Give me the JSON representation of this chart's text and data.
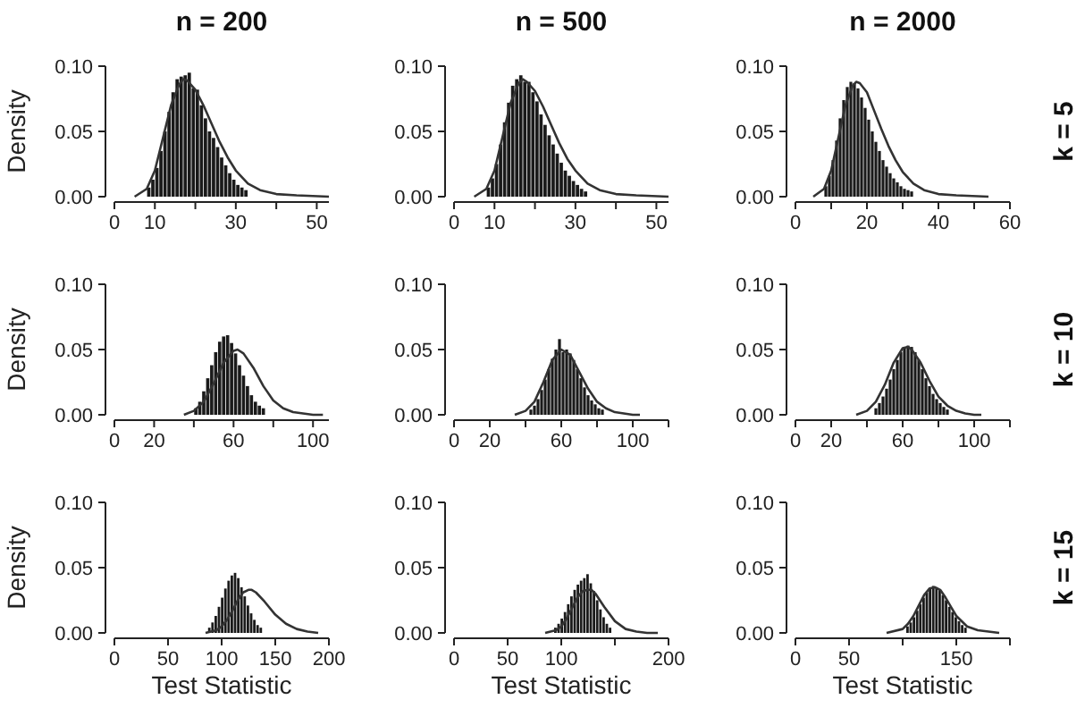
{
  "chart_data": [
    {
      "type": "histogram",
      "title": "n = 200",
      "ylabel": "Density",
      "xlim": [
        0,
        53
      ],
      "xticks": [
        0,
        10,
        {
          "value": 20,
          "label": null
        },
        30,
        {
          "value": 40,
          "label": null
        },
        50
      ],
      "ylim": [
        0,
        0.1
      ],
      "yticks": [
        {
          "value": 0,
          "label": "0.00"
        },
        {
          "value": 0.05,
          "label": "0.05"
        },
        {
          "value": 0.1,
          "label": "0.10"
        }
      ],
      "series": [
        {
          "type": "histogram",
          "color": "#1a1a1a",
          "bins": [
            8,
            9,
            10,
            11,
            12,
            13,
            14,
            15,
            16,
            17,
            18,
            19,
            20,
            21,
            22,
            23,
            24,
            25,
            26,
            27,
            28,
            29,
            30,
            31,
            32,
            33
          ],
          "values": [
            0.007,
            0.013,
            0.022,
            0.035,
            0.05,
            0.065,
            0.08,
            0.09,
            0.092,
            0.093,
            0.095,
            0.083,
            0.082,
            0.07,
            0.06,
            0.05,
            0.045,
            0.038,
            0.03,
            0.024,
            0.018,
            0.013,
            0.009,
            0.007,
            0.005
          ]
        },
        {
          "type": "line",
          "color": "#333333",
          "x": [
            5,
            8,
            10,
            12,
            14,
            16,
            17,
            18,
            20,
            22,
            24,
            26,
            28,
            30,
            33,
            36,
            40,
            45,
            53
          ],
          "values": [
            0,
            0.006,
            0.02,
            0.045,
            0.07,
            0.086,
            0.09,
            0.089,
            0.082,
            0.07,
            0.056,
            0.042,
            0.03,
            0.02,
            0.01,
            0.005,
            0.002,
            0.001,
            0
          ]
        }
      ]
    },
    {
      "type": "histogram",
      "title": "n = 500",
      "xlim": [
        0,
        53
      ],
      "xticks": [
        0,
        10,
        {
          "value": 20,
          "label": null
        },
        30,
        {
          "value": 40,
          "label": null
        },
        50
      ],
      "ylim": [
        0,
        0.1
      ],
      "yticks": [
        {
          "value": 0,
          "label": "0.00"
        },
        {
          "value": 0.05,
          "label": "0.05"
        },
        {
          "value": 0.1,
          "label": "0.10"
        }
      ],
      "series": [
        {
          "type": "histogram",
          "color": "#1a1a1a",
          "bins": [
            8,
            9,
            10,
            11,
            12,
            13,
            14,
            15,
            16,
            17,
            18,
            19,
            20,
            21,
            22,
            23,
            24,
            25,
            26,
            27,
            28,
            29,
            30,
            31,
            32,
            33
          ],
          "values": [
            0.007,
            0.014,
            0.025,
            0.04,
            0.057,
            0.072,
            0.085,
            0.09,
            0.093,
            0.088,
            0.088,
            0.08,
            0.073,
            0.063,
            0.055,
            0.047,
            0.04,
            0.033,
            0.026,
            0.02,
            0.016,
            0.012,
            0.009,
            0.006,
            0.004
          ]
        },
        {
          "type": "line",
          "color": "#333333",
          "x": [
            5,
            8,
            10,
            12,
            14,
            16,
            17,
            18,
            20,
            22,
            24,
            26,
            28,
            30,
            33,
            36,
            40,
            45,
            53
          ],
          "values": [
            0,
            0.006,
            0.02,
            0.046,
            0.072,
            0.087,
            0.09,
            0.088,
            0.081,
            0.069,
            0.055,
            0.041,
            0.029,
            0.02,
            0.01,
            0.005,
            0.002,
            0.001,
            0
          ]
        }
      ]
    },
    {
      "type": "histogram",
      "title": "n = 2000",
      "y2label": "k = 5",
      "xlim": [
        0,
        60
      ],
      "xticks": [
        0,
        {
          "value": 10,
          "label": null
        },
        20,
        {
          "value": 30,
          "label": null
        },
        40,
        {
          "value": 50,
          "label": null
        },
        60
      ],
      "ylim": [
        0,
        0.1
      ],
      "yticks": [
        {
          "value": 0,
          "label": "0.00"
        },
        {
          "value": 0.05,
          "label": "0.05"
        },
        {
          "value": 0.1,
          "label": "0.10"
        }
      ],
      "series": [
        {
          "type": "histogram",
          "color": "#1a1a1a",
          "bins": [
            8,
            9,
            10,
            11,
            12,
            13,
            14,
            15,
            16,
            17,
            18,
            19,
            20,
            21,
            22,
            23,
            24,
            25,
            26,
            27,
            28,
            29,
            30,
            31,
            32,
            33
          ],
          "values": [
            0.008,
            0.016,
            0.028,
            0.043,
            0.06,
            0.074,
            0.084,
            0.088,
            0.087,
            0.083,
            0.076,
            0.068,
            0.059,
            0.05,
            0.042,
            0.035,
            0.028,
            0.023,
            0.018,
            0.014,
            0.011,
            0.008,
            0.006,
            0.005,
            0.004
          ]
        },
        {
          "type": "line",
          "color": "#333333",
          "x": [
            5,
            8,
            10,
            12,
            14,
            16,
            17,
            18,
            20,
            22,
            24,
            26,
            28,
            30,
            33,
            36,
            40,
            45,
            54
          ],
          "values": [
            0,
            0.006,
            0.02,
            0.045,
            0.07,
            0.085,
            0.088,
            0.087,
            0.08,
            0.066,
            0.052,
            0.039,
            0.028,
            0.019,
            0.01,
            0.005,
            0.002,
            0.001,
            0
          ]
        }
      ]
    },
    {
      "type": "histogram",
      "ylabel": "Density",
      "xlim": [
        0,
        108
      ],
      "xticks": [
        0,
        20,
        {
          "value": 40,
          "label": null
        },
        60,
        {
          "value": 80,
          "label": null
        },
        100
      ],
      "ylim": [
        0,
        0.1
      ],
      "yticks": [
        {
          "value": 0,
          "label": "0.00"
        },
        {
          "value": 0.05,
          "label": "0.05"
        },
        {
          "value": 0.1,
          "label": "0.10"
        }
      ],
      "series": [
        {
          "type": "histogram",
          "color": "#1a1a1a",
          "bins": [
            40,
            42,
            44,
            46,
            48,
            50,
            52,
            54,
            56,
            58,
            60,
            62,
            64,
            66,
            68,
            70,
            72,
            74,
            76
          ],
          "values": [
            0.005,
            0.01,
            0.018,
            0.028,
            0.038,
            0.048,
            0.056,
            0.06,
            0.061,
            0.055,
            0.047,
            0.038,
            0.03,
            0.022,
            0.015,
            0.01,
            0.007,
            0.005
          ]
        },
        {
          "type": "line",
          "color": "#333333",
          "x": [
            35,
            40,
            45,
            50,
            55,
            60,
            62,
            65,
            70,
            75,
            80,
            85,
            90,
            95,
            100,
            105
          ],
          "values": [
            0,
            0.003,
            0.01,
            0.024,
            0.04,
            0.049,
            0.05,
            0.047,
            0.036,
            0.022,
            0.011,
            0.005,
            0.002,
            0.001,
            0,
            0
          ]
        }
      ]
    },
    {
      "type": "histogram",
      "xlim": [
        0,
        120
      ],
      "xticks": [
        0,
        20,
        {
          "value": 40,
          "label": null
        },
        60,
        {
          "value": 80,
          "label": null
        },
        100,
        {
          "value": 120,
          "label": null
        }
      ],
      "ylim": [
        0,
        0.1
      ],
      "yticks": [
        {
          "value": 0,
          "label": "0.00"
        },
        {
          "value": 0.05,
          "label": "0.05"
        },
        {
          "value": 0.1,
          "label": "0.10"
        }
      ],
      "series": [
        {
          "type": "histogram",
          "color": "#1a1a1a",
          "bins": [
            42,
            44,
            46,
            48,
            50,
            52,
            54,
            56,
            58,
            60,
            62,
            64,
            66,
            68,
            70,
            72,
            74,
            76,
            78,
            80,
            82,
            84
          ],
          "values": [
            0.004,
            0.007,
            0.012,
            0.019,
            0.027,
            0.035,
            0.043,
            0.05,
            0.058,
            0.048,
            0.05,
            0.047,
            0.042,
            0.035,
            0.028,
            0.021,
            0.015,
            0.011,
            0.008,
            0.005,
            0.004
          ]
        },
        {
          "type": "line",
          "color": "#333333",
          "x": [
            34,
            40,
            45,
            50,
            55,
            60,
            65,
            70,
            75,
            80,
            85,
            90,
            95,
            100,
            104
          ],
          "values": [
            0,
            0.003,
            0.01,
            0.025,
            0.042,
            0.05,
            0.046,
            0.033,
            0.02,
            0.01,
            0.005,
            0.002,
            0.001,
            0,
            0
          ]
        }
      ]
    },
    {
      "type": "histogram",
      "y2label": "k = 10",
      "xlim": [
        0,
        120
      ],
      "xticks": [
        0,
        20,
        {
          "value": 40,
          "label": null
        },
        60,
        {
          "value": 80,
          "label": null
        },
        100,
        {
          "value": 120,
          "label": null
        }
      ],
      "ylim": [
        0,
        0.1
      ],
      "yticks": [
        {
          "value": 0,
          "label": "0.00"
        },
        {
          "value": 0.05,
          "label": "0.05"
        },
        {
          "value": 0.1,
          "label": "0.10"
        }
      ],
      "series": [
        {
          "type": "histogram",
          "color": "#1a1a1a",
          "bins": [
            44,
            46,
            48,
            50,
            52,
            54,
            56,
            58,
            60,
            62,
            64,
            66,
            68,
            70,
            72,
            74,
            76,
            78,
            80,
            82,
            84,
            86
          ],
          "values": [
            0.005,
            0.009,
            0.014,
            0.02,
            0.027,
            0.035,
            0.042,
            0.048,
            0.052,
            0.053,
            0.052,
            0.048,
            0.042,
            0.035,
            0.028,
            0.022,
            0.016,
            0.012,
            0.009,
            0.006,
            0.004
          ]
        },
        {
          "type": "line",
          "color": "#333333",
          "x": [
            34,
            40,
            45,
            50,
            55,
            60,
            63,
            65,
            70,
            75,
            80,
            85,
            90,
            95,
            100,
            104
          ],
          "values": [
            0,
            0.003,
            0.01,
            0.023,
            0.04,
            0.051,
            0.052,
            0.05,
            0.04,
            0.026,
            0.014,
            0.007,
            0.003,
            0.001,
            0,
            0
          ]
        }
      ]
    },
    {
      "type": "histogram",
      "ylabel": "Density",
      "xlabel": "Test Statistic",
      "xlim": [
        0,
        200
      ],
      "xticks": [
        0,
        50,
        100,
        150,
        200
      ],
      "ylim": [
        0,
        0.1
      ],
      "yticks": [
        {
          "value": 0,
          "label": "0.00"
        },
        {
          "value": 0.05,
          "label": "0.05"
        },
        {
          "value": 0.1,
          "label": "0.10"
        }
      ],
      "series": [
        {
          "type": "histogram",
          "color": "#1a1a1a",
          "bins": [
            87,
            90,
            93,
            96,
            99,
            102,
            105,
            108,
            111,
            114,
            117,
            120,
            123,
            126,
            129,
            132,
            135,
            138
          ],
          "values": [
            0.004,
            0.008,
            0.013,
            0.02,
            0.027,
            0.034,
            0.04,
            0.044,
            0.046,
            0.042,
            0.035,
            0.028,
            0.021,
            0.015,
            0.01,
            0.006,
            0.004
          ]
        },
        {
          "type": "line",
          "color": "#333333",
          "x": [
            85,
            95,
            100,
            105,
            110,
            115,
            120,
            125,
            128,
            132,
            140,
            150,
            160,
            170,
            180,
            190
          ],
          "values": [
            0,
            0.002,
            0.005,
            0.01,
            0.017,
            0.025,
            0.031,
            0.033,
            0.033,
            0.031,
            0.024,
            0.014,
            0.007,
            0.003,
            0.001,
            0
          ]
        }
      ]
    },
    {
      "type": "histogram",
      "xlabel": "Test Statistic",
      "xlim": [
        0,
        200
      ],
      "xticks": [
        0,
        50,
        100,
        {
          "value": 150,
          "label": null
        },
        200
      ],
      "ylim": [
        0,
        0.1
      ],
      "yticks": [
        {
          "value": 0,
          "label": "0.00"
        },
        {
          "value": 0.05,
          "label": "0.05"
        },
        {
          "value": 0.1,
          "label": "0.10"
        }
      ],
      "series": [
        {
          "type": "histogram",
          "color": "#1a1a1a",
          "bins": [
            93,
            96,
            99,
            102,
            105,
            108,
            111,
            114,
            117,
            120,
            123,
            126,
            129,
            132,
            135,
            138,
            141,
            144,
            147
          ],
          "values": [
            0.004,
            0.007,
            0.011,
            0.016,
            0.022,
            0.028,
            0.033,
            0.037,
            0.04,
            0.042,
            0.045,
            0.038,
            0.032,
            0.025,
            0.018,
            0.012,
            0.007,
            0.004
          ]
        },
        {
          "type": "line",
          "color": "#333333",
          "x": [
            85,
            95,
            100,
            105,
            110,
            115,
            120,
            125,
            128,
            132,
            140,
            150,
            160,
            170,
            180,
            190
          ],
          "values": [
            0,
            0.002,
            0.005,
            0.011,
            0.019,
            0.027,
            0.032,
            0.033,
            0.033,
            0.03,
            0.02,
            0.009,
            0.003,
            0.001,
            0,
            0
          ]
        }
      ]
    },
    {
      "type": "histogram",
      "xlabel": "Test Statistic",
      "y2label": "k = 15",
      "xlim": [
        0,
        200
      ],
      "xticks": [
        0,
        50,
        {
          "value": 100,
          "label": null
        },
        150,
        {
          "value": 200,
          "label": null
        }
      ],
      "ylim": [
        0,
        0.1
      ],
      "yticks": [
        {
          "value": 0,
          "label": "0.00"
        },
        {
          "value": 0.05,
          "label": "0.05"
        },
        {
          "value": 0.1,
          "label": "0.10"
        }
      ],
      "series": [
        {
          "type": "histogram",
          "color": "#1a1a1a",
          "bins": [
            103,
            106,
            109,
            112,
            115,
            118,
            121,
            124,
            127,
            130,
            133,
            136,
            139,
            142,
            145,
            148,
            151,
            154,
            157,
            160
          ],
          "values": [
            0.005,
            0.008,
            0.012,
            0.017,
            0.022,
            0.027,
            0.031,
            0.034,
            0.036,
            0.035,
            0.033,
            0.029,
            0.025,
            0.02,
            0.016,
            0.012,
            0.009,
            0.006,
            0.004
          ]
        },
        {
          "type": "line",
          "color": "#333333",
          "x": [
            85,
            100,
            105,
            110,
            115,
            120,
            125,
            130,
            135,
            140,
            145,
            150,
            160,
            170,
            180,
            190
          ],
          "values": [
            0,
            0.003,
            0.007,
            0.013,
            0.021,
            0.029,
            0.034,
            0.035,
            0.033,
            0.027,
            0.02,
            0.013,
            0.005,
            0.002,
            0.001,
            0
          ]
        }
      ]
    }
  ]
}
